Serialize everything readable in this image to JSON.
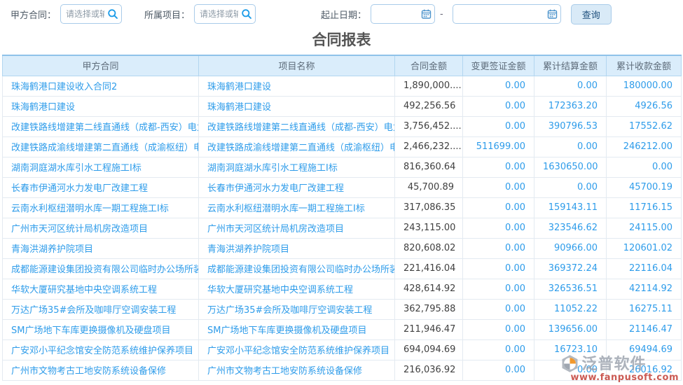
{
  "filters": {
    "party_contract_label": "甲方合同：",
    "party_contract_placeholder": "请选择或输入",
    "project_label": "所属项目：",
    "project_placeholder": "请选择或输入",
    "date_range_label": "起止日期：",
    "date_separator": "-",
    "start_date_value": "",
    "end_date_value": "",
    "query_button_label": "查询"
  },
  "title": "合同报表",
  "table": {
    "columns": [
      "甲方合同",
      "项目名称",
      "合同金额",
      "变更签证金额",
      "累计结算金额",
      "累计收款金额"
    ],
    "rows": [
      [
        "珠海鹤港口建设收入合同2",
        "珠海鹤港口建设",
        "1,890,000....",
        "0.00",
        "0.00",
        "180000.00"
      ],
      [
        "珠海鹤港口建设",
        "珠海鹤港口建设",
        "492,256.56",
        "0.00",
        "172363.20",
        "4926.56"
      ],
      [
        "改建铁路线增建第二线直通线（成都-西安）电力",
        "改建铁路线增建第二线直通线（成都-西安）电力",
        "3,756,452....",
        "0.00",
        "390796.53",
        "17552.62"
      ],
      [
        "改建铁路成渝线增建第二直通线（成渝枢纽）电气",
        "改建铁路成渝线增建第二直通线（成渝枢纽）电气",
        "2,466,232....",
        "511699.00",
        "0.00",
        "246212.00"
      ],
      [
        "湖南洞庭湖水库引水工程施工I标",
        "湖南洞庭湖水库引水工程施工I标",
        "816,360.64",
        "0.00",
        "1630650.00",
        "0.00"
      ],
      [
        "长春市伊通河水力发电厂改建工程",
        "长春市伊通河水力发电厂改建工程",
        "45,700.89",
        "0.00",
        "0.00",
        "45700.19"
      ],
      [
        "云南水利枢纽潜明水库一期工程施工I标",
        "云南水利枢纽潜明水库一期工程施工I标",
        "317,086.35",
        "0.00",
        "159143.11",
        "11716.15"
      ],
      [
        "广州市天河区统计局机房改造项目",
        "广州市天河区统计局机房改造项目",
        "243,115.00",
        "0.00",
        "323546.62",
        "24115.00"
      ],
      [
        "青海洪湖养护院项目",
        "青海洪湖养护院项目",
        "820,608.02",
        "0.00",
        "90966.00",
        "120601.02"
      ],
      [
        "成都能源建设集团投资有限公司临时办公场所装修",
        "成都能源建设集团投资有限公司临时办公场所装修",
        "221,416.04",
        "0.00",
        "369372.24",
        "22116.04"
      ],
      [
        "华软大厦研究基地中央空调系统工程",
        "华软大厦研究基地中央空调系统工程",
        "428,614.92",
        "0.00",
        "326536.51",
        "42114.92"
      ],
      [
        "万达广场35#会所及咖啡厅空调安装工程",
        "万达广场35#会所及咖啡厅空调安装工程",
        "362,795.88",
        "0.00",
        "11052.22",
        "16275.11"
      ],
      [
        "SM广场地下车库更换摄像机及硬盘项目",
        "SM广场地下车库更换摄像机及硬盘项目",
        "211,946.47",
        "0.00",
        "139656.00",
        "21146.47"
      ],
      [
        "广安邓小平纪念馆安全防范系统维护保养项目",
        "广安邓小平纪念馆安全防范系统维护保养项目",
        "694,094.69",
        "0.00",
        "16723.10",
        "69494.69"
      ],
      [
        "广州市文物考古工地安防系统设备保修",
        "广州市文物考古工地安防系统设备保修",
        "216,036.92",
        "0.00",
        "0.00",
        "26016.92"
      ]
    ]
  },
  "watermark": {
    "brand": "泛普软件",
    "url": "www.fanpusoft.com"
  },
  "colors": {
    "link_blue": "#2e9cea",
    "header_bg": "#daedfb",
    "header_border": "#8ec2e9",
    "input_border": "#a9cbe9",
    "button_bg": "#d9eaf7",
    "button_text": "#21527f",
    "title_gray": "#555555",
    "amount_dark": "#3f3f3f",
    "watermark_gray": "#9aa2ad",
    "watermark_red": "#c0372e"
  }
}
